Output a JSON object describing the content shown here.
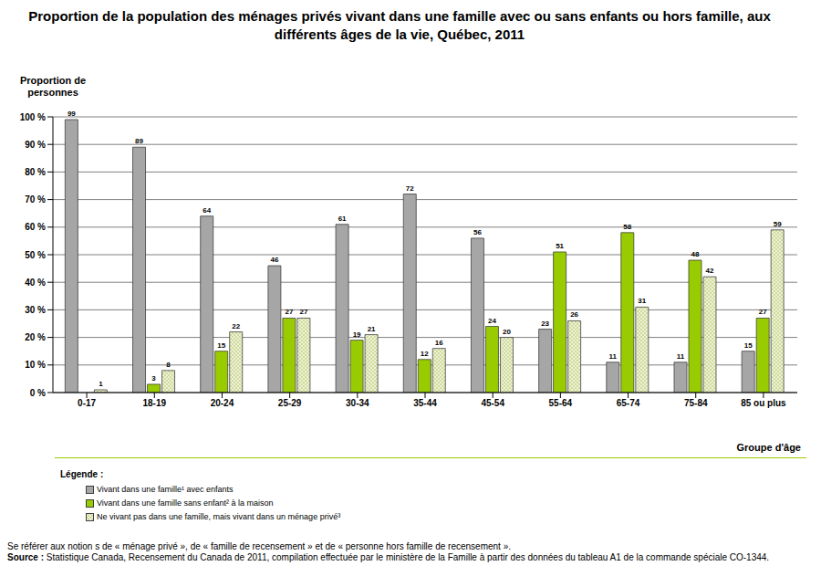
{
  "chart_data": {
    "type": "bar",
    "title": "Proportion de la population des ménages privés vivant dans une famille avec ou sans enfants ou hors famille, aux différents âges de la vie, Québec, 2011",
    "y_label": "Proportion de personnes",
    "x_label": "Groupe d'âge",
    "legend_title": "Légende :",
    "note": "Se référer aux notion s de « ménage privé », de « famille de recensement » et de « personne hors famille de recensement ».",
    "source_label": "Source :",
    "source": "Statistique Canada, Recensement du Canada de 2011, compilation effectuée par le ministère de la Famille à partir des données du tableau A1 de la commande spéciale CO-1344.",
    "categories": [
      "0-17",
      "18-19",
      "20-24",
      "25-29",
      "30-34",
      "35-44",
      "45-54",
      "55-64",
      "65-74",
      "75-84",
      "85 ou plus"
    ],
    "series": [
      {
        "name": "Vivant dans une famille¹ avec enfants",
        "color": "#a6a6a6",
        "values": [
          99,
          89,
          64,
          46,
          61,
          72,
          56,
          23,
          11,
          11,
          15
        ]
      },
      {
        "name": "Vivant dans une famille sans enfant² à la maison",
        "color": "#99cc00",
        "values": [
          0,
          3,
          15,
          27,
          19,
          12,
          24,
          51,
          58,
          48,
          27
        ],
        "value_labels": [
          "-",
          "3",
          "15",
          "27",
          "19",
          "12",
          "24",
          "51",
          "58",
          "48",
          "27"
        ]
      },
      {
        "name": "Ne vivant pas dans une famille, mais vivant dans un ménage privé³",
        "color": "#a9bf55",
        "values": [
          1,
          8,
          22,
          27,
          21,
          16,
          20,
          26,
          31,
          42,
          59
        ]
      }
    ],
    "ylim": [
      0,
      100
    ],
    "yticks": [
      {
        "value": 0,
        "label": "0 %"
      },
      {
        "value": 10,
        "label": "10 %"
      },
      {
        "value": 20,
        "label": "20 %"
      },
      {
        "value": 30,
        "label": "30 %"
      },
      {
        "value": 40,
        "label": "40 %"
      },
      {
        "value": 50,
        "label": "50 %"
      },
      {
        "value": 60,
        "label": "60 %"
      },
      {
        "value": 70,
        "label": "70 %"
      },
      {
        "value": 80,
        "label": "80 %"
      },
      {
        "value": 90,
        "label": "90 %"
      },
      {
        "value": 100,
        "label": "100 %"
      }
    ],
    "grid": true,
    "data_labels": true,
    "legend": "bottom left"
  }
}
